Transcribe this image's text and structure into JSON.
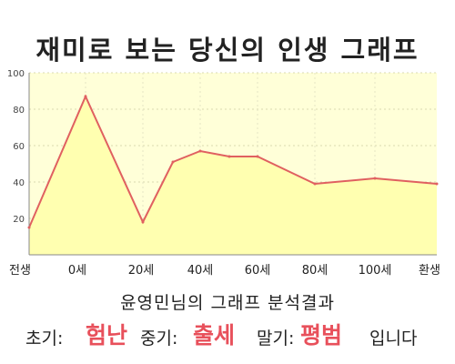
{
  "title": "재미로 보는 당신의 인생 그래프",
  "subtitle": "윤영민님의 그래프 분석결과",
  "result": {
    "early_label": "초기:",
    "early_value": "험난",
    "middle_label": "중기:",
    "middle_value": "출세",
    "late_label": "말기:",
    "late_value": "평범",
    "ending": "입니다"
  },
  "colors": {
    "plot_bg": "#ffffd8",
    "area_fill": "#ffffb0",
    "line": "#e06060",
    "accent": "#e8505b"
  },
  "chart_data": {
    "type": "area",
    "title": "재미로 보는 당신의 인생 그래프",
    "x_tick_labels": [
      "전생",
      "0세",
      "20세",
      "40세",
      "60세",
      "80세",
      "100세",
      "환생"
    ],
    "y_ticks": [
      20,
      40,
      60,
      80,
      100
    ],
    "ylim": [
      0,
      100
    ],
    "grid": true,
    "x": [
      "전생",
      "0세",
      "20세",
      "30세",
      "40세",
      "50세",
      "60세",
      "80세",
      "100세",
      "환생"
    ],
    "values": [
      15,
      87,
      18,
      51,
      57,
      54,
      54,
      39,
      42,
      39
    ]
  }
}
